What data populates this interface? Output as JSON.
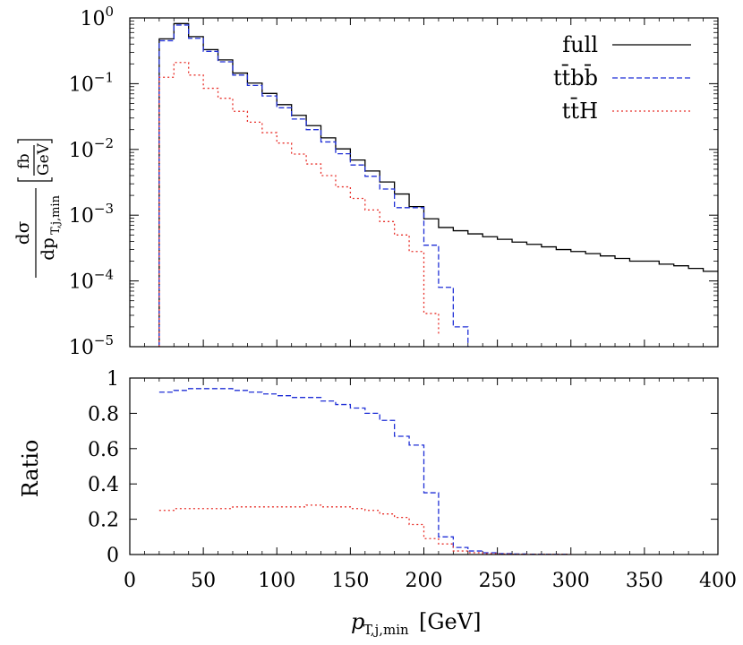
{
  "chart_data": [
    {
      "type": "line",
      "subtype": "step-histogram",
      "yscale": "log",
      "xlim": [
        0,
        400
      ],
      "ylim": [
        1e-05,
        1
      ],
      "ylabel_parts": {
        "numerator": "dσ",
        "denominator_prefix": "dp",
        "denominator_sub": "T,j,min",
        "unit_num": "fb",
        "unit_den": "GeV"
      },
      "yticks": [
        {
          "value": 1,
          "base": "10",
          "exp": "0"
        },
        {
          "value": 0.1,
          "base": "10",
          "exp": "−1"
        },
        {
          "value": 0.01,
          "base": "10",
          "exp": "−2"
        },
        {
          "value": 0.001,
          "base": "10",
          "exp": "−3"
        },
        {
          "value": 0.0001,
          "base": "10",
          "exp": "−4"
        },
        {
          "value": 1e-05,
          "base": "10",
          "exp": "−5"
        }
      ],
      "legend": {
        "placement": "top-right"
      },
      "series": [
        {
          "name": "full",
          "color": "#000000",
          "dash": "solid",
          "edges": [
            20,
            30,
            40,
            50,
            60,
            70,
            80,
            90,
            100,
            110,
            120,
            130,
            140,
            150,
            160,
            170,
            180,
            190,
            200,
            210,
            220,
            230,
            240,
            250,
            260,
            270,
            280,
            290,
            300,
            310,
            320,
            330,
            340,
            350,
            360,
            370,
            380,
            390,
            400
          ],
          "values": [
            0.48,
            0.82,
            0.52,
            0.33,
            0.23,
            0.145,
            0.102,
            0.071,
            0.048,
            0.033,
            0.023,
            0.015,
            0.0102,
            0.0069,
            0.0047,
            0.0032,
            0.0021,
            0.00135,
            0.00088,
            0.00065,
            0.00058,
            0.00052,
            0.00047,
            0.00043,
            0.00039,
            0.00036,
            0.00033,
            0.0003,
            0.00028,
            0.00026,
            0.00024,
            0.00022,
            0.0002,
            0.0002,
            0.00018,
            0.00017,
            0.000155,
            0.00014
          ]
        },
        {
          "name": "tt̄bb̄",
          "color": "#1f2fd6",
          "dash": "dashed",
          "edges": [
            20,
            30,
            40,
            50,
            60,
            70,
            80,
            90,
            100,
            110,
            120,
            130,
            140,
            150,
            160,
            170,
            180,
            190,
            200,
            210,
            220,
            230
          ],
          "values": [
            0.45,
            0.78,
            0.49,
            0.31,
            0.215,
            0.135,
            0.094,
            0.065,
            0.043,
            0.029,
            0.02,
            0.013,
            0.0086,
            0.0058,
            0.0039,
            0.0025,
            0.0013,
            0.0013,
            0.00035,
            8e-05,
            2e-05,
            1e-05
          ]
        },
        {
          "name": "tt̄H",
          "color": "#e8302a",
          "dash": "dotted",
          "edges": [
            20,
            30,
            40,
            50,
            60,
            70,
            80,
            90,
            100,
            110,
            120,
            130,
            140,
            150,
            160,
            170,
            180,
            190,
            200,
            210
          ],
          "values": [
            0.125,
            0.21,
            0.135,
            0.085,
            0.06,
            0.038,
            0.026,
            0.018,
            0.0125,
            0.0085,
            0.006,
            0.004,
            0.0027,
            0.0018,
            0.0012,
            0.0008,
            0.0005,
            0.00028,
            3.2e-05,
            1.5e-05
          ]
        }
      ]
    },
    {
      "type": "line",
      "subtype": "step-histogram",
      "xlim": [
        0,
        400
      ],
      "ylim": [
        0,
        1
      ],
      "xlabel_parts": {
        "prefix": "p",
        "sub": "T,j,min",
        "unit": "[GeV]"
      },
      "ylabel": "Ratio",
      "xticks": [
        0,
        50,
        100,
        150,
        200,
        250,
        300,
        350,
        400
      ],
      "yticks": [
        0,
        0.2,
        0.4,
        0.6,
        0.8,
        1
      ],
      "ytick_labels": [
        "0",
        "0.2",
        "0.4",
        "0.6",
        "0.8",
        "1"
      ],
      "series": [
        {
          "name": "tt̄bb̄",
          "color": "#1f2fd6",
          "dash": "dashed",
          "edges": [
            20,
            30,
            40,
            50,
            60,
            70,
            80,
            90,
            100,
            110,
            120,
            130,
            140,
            150,
            160,
            170,
            180,
            190,
            200,
            210,
            220,
            230,
            240,
            250,
            260,
            270,
            280,
            290,
            300
          ],
          "values": [
            0.92,
            0.93,
            0.94,
            0.94,
            0.94,
            0.93,
            0.92,
            0.91,
            0.9,
            0.89,
            0.89,
            0.87,
            0.85,
            0.83,
            0.8,
            0.76,
            0.67,
            0.62,
            0.35,
            0.1,
            0.04,
            0.02,
            0.01,
            0.005,
            0.003,
            0.002,
            0.001,
            0.001
          ]
        },
        {
          "name": "tt̄H",
          "color": "#e8302a",
          "dash": "dotted",
          "edges": [
            20,
            30,
            40,
            50,
            60,
            70,
            80,
            90,
            100,
            110,
            120,
            130,
            140,
            150,
            160,
            170,
            180,
            190,
            200,
            210,
            220,
            230,
            240,
            250,
            260,
            270,
            280,
            290,
            300
          ],
          "values": [
            0.25,
            0.26,
            0.26,
            0.26,
            0.26,
            0.27,
            0.27,
            0.27,
            0.27,
            0.27,
            0.28,
            0.27,
            0.27,
            0.26,
            0.25,
            0.23,
            0.21,
            0.17,
            0.09,
            0.06,
            0.02,
            0.01,
            0.005,
            0.003,
            0.002,
            0.001,
            0.001,
            0.001
          ]
        }
      ]
    }
  ]
}
